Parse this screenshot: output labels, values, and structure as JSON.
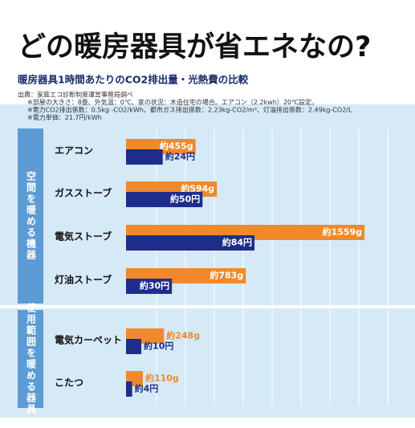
{
  "chart_data": {
    "type": "bar",
    "orientation": "horizontal",
    "title": "どの暖房器具が省エネなの?",
    "subtitle": "暖房器具1時間あたりのCO2排出量・光熱費の比較",
    "source": [
      "出典：家庭エコ診断制度運営事務局調べ",
      "※部屋の大きさ：8畳、外気温：0℃、家の状況：木造住宅の場合。エアコン（2.2kwh）20℃設定。",
      "※電力CO2排出係数：0.5kg -CO2/kWh、都市ガス排出係数：2.23kg-CO2/m³、灯油排出係数：2.49kg-CO2/L",
      "※電力単価：21.7円/kWh"
    ],
    "groups": [
      "空間を暖める機器",
      "使用範囲を暖める器具"
    ],
    "group_of": [
      0,
      0,
      0,
      0,
      1,
      1
    ],
    "categories": [
      "エアコン",
      "ガスストーブ",
      "電気ストーブ",
      "灯油ストーブ",
      "電気カーペット",
      "こたつ"
    ],
    "xlim": [
      0,
      1800
    ],
    "x2lim": [
      0,
      180
    ],
    "series": [
      {
        "color": "#f0892b",
        "values": [
          455,
          594,
          1559,
          783,
          248,
          110
        ],
        "value_labels": [
          "約455g",
          "約594g",
          "約1559g",
          "約783g",
          "約248g",
          "約110g"
        ]
      },
      {
        "color": "#1f2d8a",
        "axis": "x2",
        "values": [
          24,
          50,
          84,
          30,
          10,
          4
        ],
        "value_labels": [
          "約24円",
          "約50円",
          "約84円",
          "約30円",
          "約10円",
          "約4円"
        ]
      }
    ]
  }
}
